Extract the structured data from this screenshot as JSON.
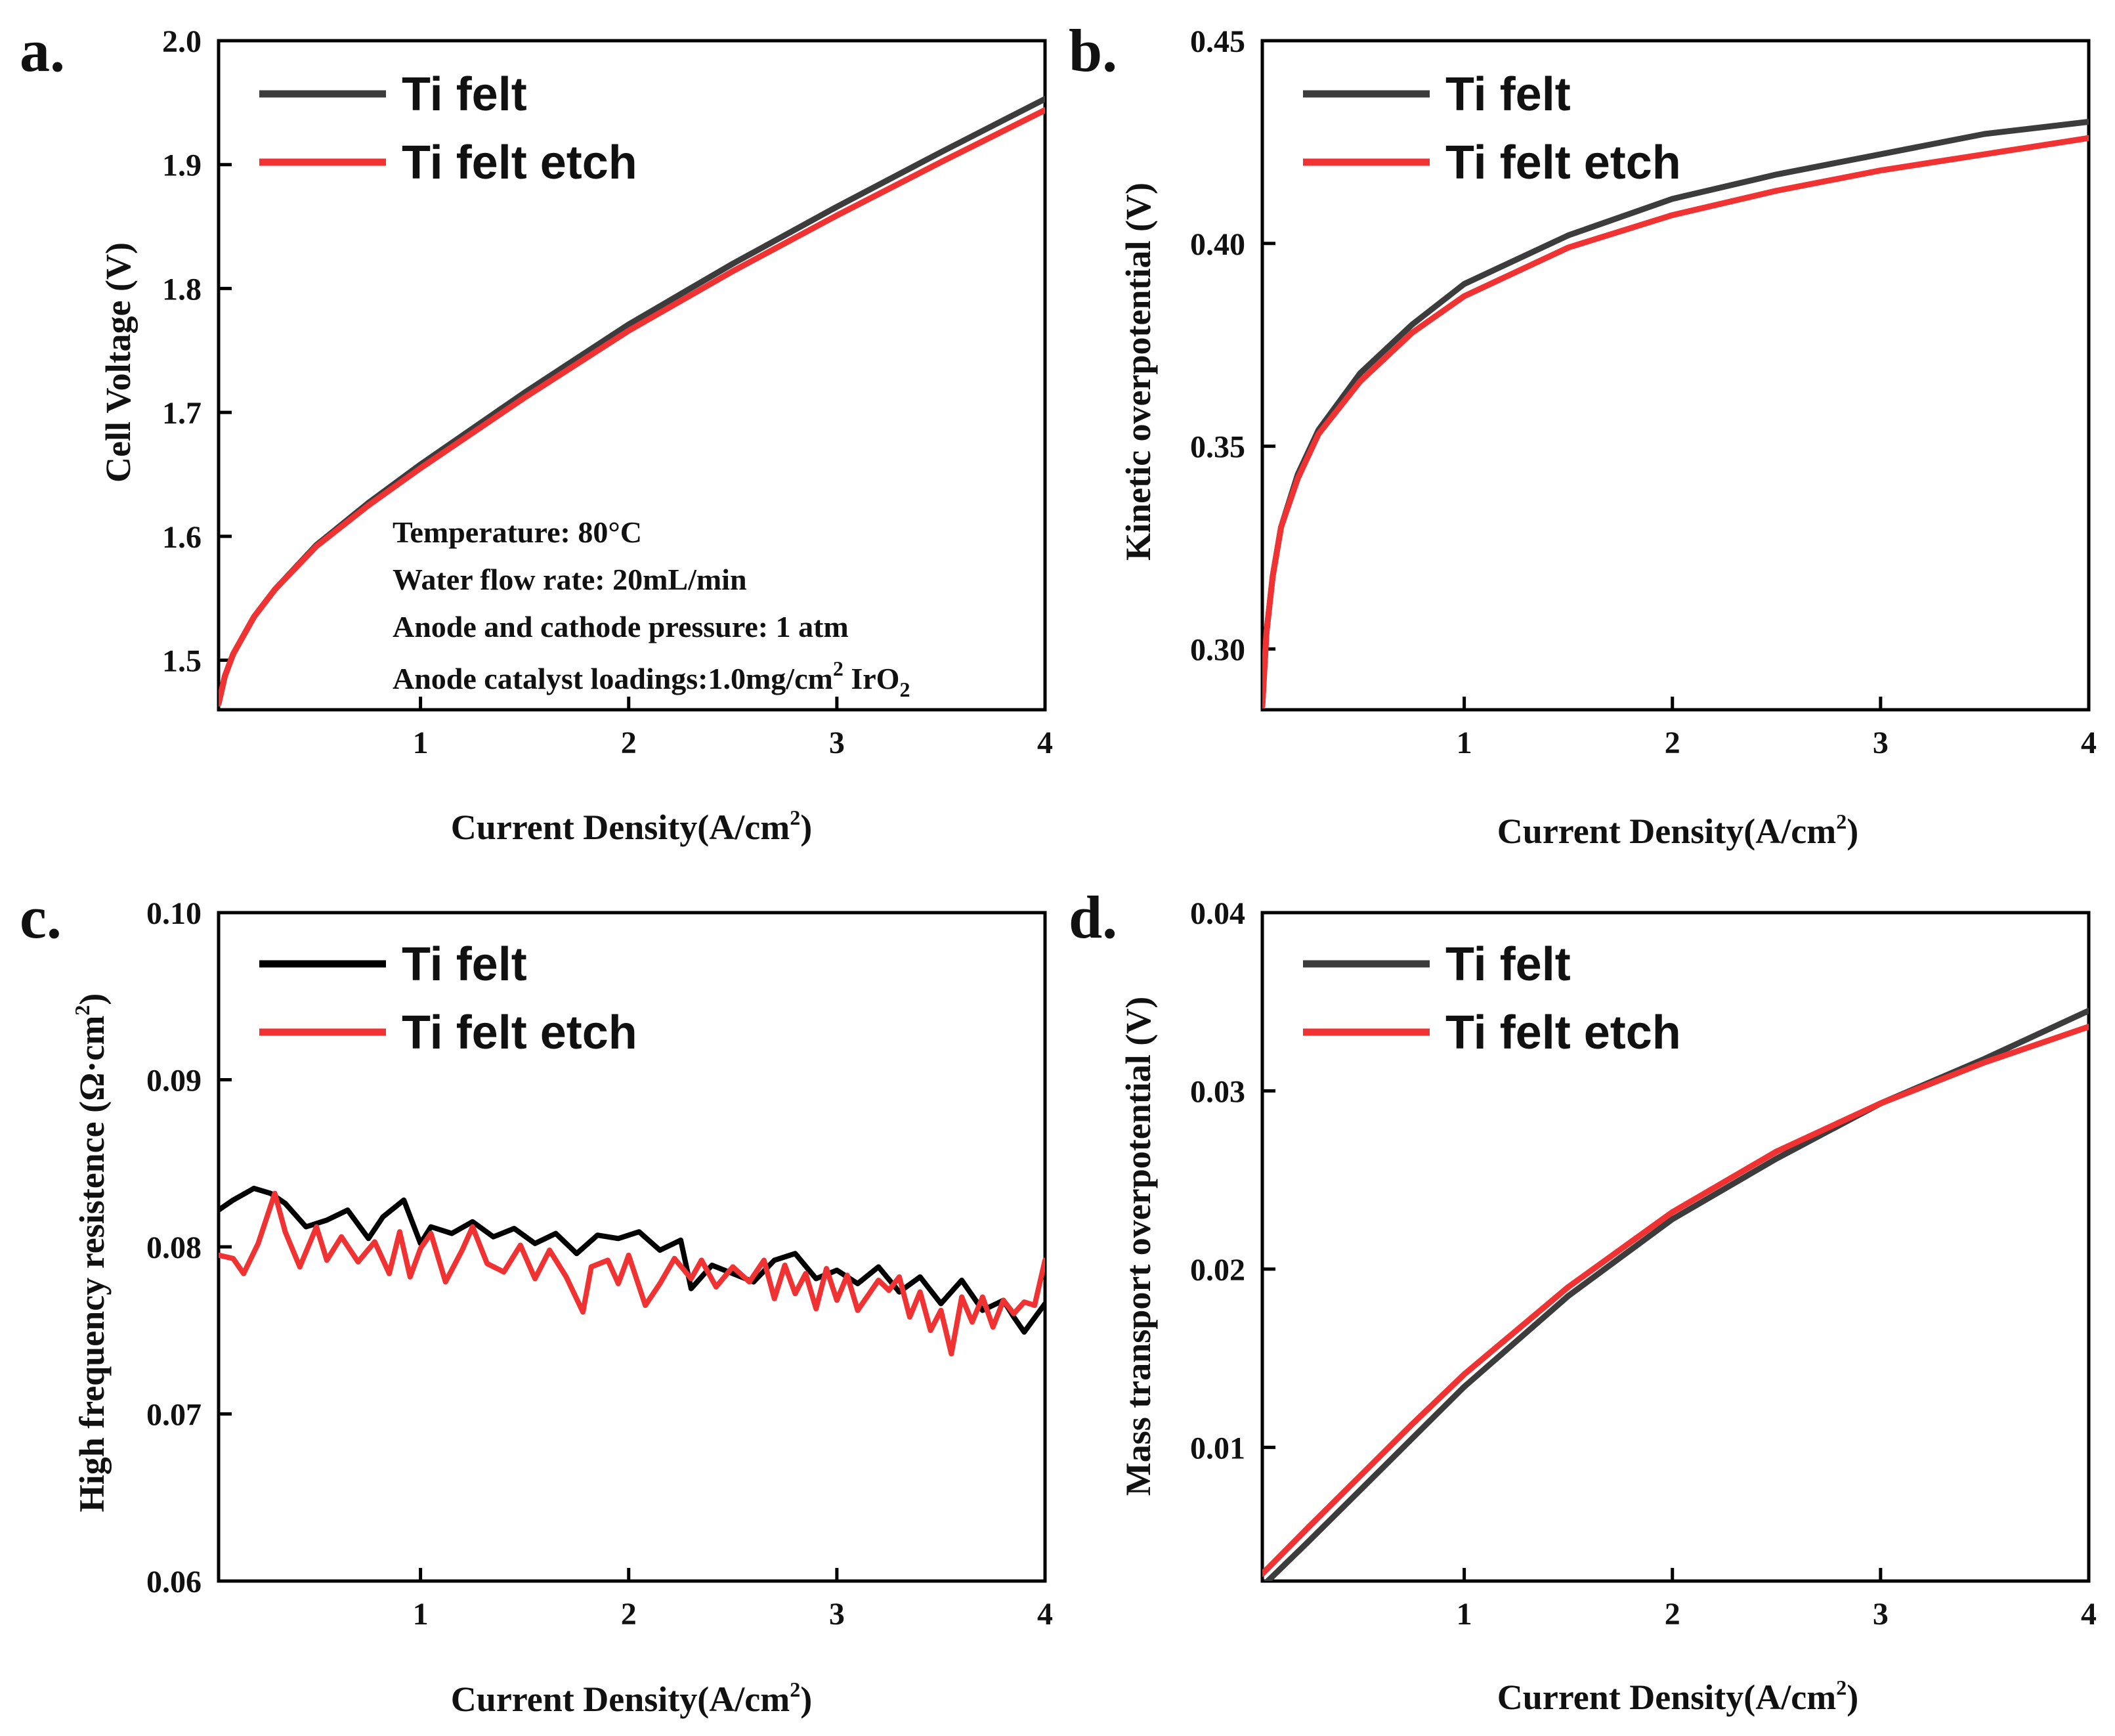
{
  "colors": {
    "black_series": "#3c3c3c",
    "black_series_c": "#000000",
    "red_series": "#f03232",
    "axis": "#000000"
  },
  "chart_data": [
    {
      "panel": "a.",
      "type": "line",
      "title": "",
      "xlabel": "Current Density(A/cm",
      "xlabel_sup": "2",
      "xlabel_end": ")",
      "ylabel": "Cell Voltage (V)",
      "xlim": [
        0.03,
        4
      ],
      "ylim": [
        1.46,
        2.0
      ],
      "xticks": [
        1,
        2,
        3,
        4
      ],
      "yticks": [
        1.5,
        1.6,
        1.7,
        1.8,
        1.9,
        2.0
      ],
      "ytick_decimals": 1,
      "legend_placement": "top-left",
      "annotations": [
        "Temperature: 80°C",
        "Water flow rate: 20mL/min",
        "Anode and cathode pressure: 1 atm",
        "Anode catalyst loadings:1.0mg/cm",
        "2",
        " IrO",
        "2"
      ],
      "series": [
        {
          "name": "Ti felt",
          "color": "#3c3c3c",
          "x": [
            0.03,
            0.06,
            0.1,
            0.2,
            0.3,
            0.5,
            0.75,
            1.0,
            1.5,
            2.0,
            2.5,
            3.0,
            3.5,
            4.0
          ],
          "y": [
            1.465,
            1.487,
            1.505,
            1.535,
            1.557,
            1.593,
            1.627,
            1.658,
            1.716,
            1.771,
            1.82,
            1.866,
            1.91,
            1.953
          ]
        },
        {
          "name": "Ti felt etch",
          "color": "#f03232",
          "x": [
            0.03,
            0.06,
            0.1,
            0.2,
            0.3,
            0.5,
            0.75,
            1.0,
            1.5,
            2.0,
            2.5,
            3.0,
            3.5,
            4.0
          ],
          "y": [
            1.465,
            1.487,
            1.505,
            1.535,
            1.557,
            1.592,
            1.625,
            1.655,
            1.712,
            1.766,
            1.814,
            1.859,
            1.902,
            1.944
          ]
        }
      ]
    },
    {
      "panel": "b.",
      "type": "line",
      "title": "",
      "xlabel": "Current Density(A/cm",
      "xlabel_sup": "2",
      "xlabel_end": ")",
      "ylabel": "Kinetic overpotential (V)",
      "xlim": [
        0.03,
        4
      ],
      "ylim": [
        0.285,
        0.45
      ],
      "xticks": [
        1,
        2,
        3,
        4
      ],
      "yticks": [
        0.3,
        0.35,
        0.4,
        0.45
      ],
      "ytick_decimals": 2,
      "legend_placement": "top-left",
      "series": [
        {
          "name": "Ti felt",
          "color": "#3c3c3c",
          "x": [
            0.03,
            0.05,
            0.08,
            0.12,
            0.2,
            0.3,
            0.5,
            0.75,
            1.0,
            1.5,
            2.0,
            2.5,
            3.0,
            3.5,
            4.0
          ],
          "y": [
            0.286,
            0.304,
            0.318,
            0.33,
            0.343,
            0.354,
            0.368,
            0.38,
            0.39,
            0.402,
            0.411,
            0.417,
            0.422,
            0.427,
            0.43
          ]
        },
        {
          "name": "Ti felt etch",
          "color": "#f03232",
          "x": [
            0.03,
            0.05,
            0.08,
            0.12,
            0.2,
            0.3,
            0.5,
            0.75,
            1.0,
            1.5,
            2.0,
            2.5,
            3.0,
            3.5,
            4.0
          ],
          "y": [
            0.286,
            0.304,
            0.318,
            0.33,
            0.342,
            0.353,
            0.366,
            0.378,
            0.387,
            0.399,
            0.407,
            0.413,
            0.418,
            0.422,
            0.426
          ]
        }
      ]
    },
    {
      "panel": "c.",
      "type": "line",
      "title": "",
      "xlabel": "Current Density(A/cm",
      "xlabel_sup": "2",
      "xlabel_end": ")",
      "ylabel": "High frequency resistence (Ω·cm",
      "ylabel_sup": "2",
      "ylabel_end": ")",
      "xlim": [
        0.03,
        4
      ],
      "ylim": [
        0.06,
        0.1
      ],
      "xticks": [
        1,
        2,
        3,
        4
      ],
      "yticks": [
        0.06,
        0.07,
        0.08,
        0.09,
        0.1
      ],
      "ytick_decimals": 2,
      "legend_placement": "top-left",
      "series": [
        {
          "name": "Ti felt",
          "color": "#000000",
          "x": [
            0.03,
            0.1,
            0.2,
            0.28,
            0.35,
            0.45,
            0.55,
            0.65,
            0.75,
            0.82,
            0.92,
            1.0,
            1.05,
            1.15,
            1.25,
            1.35,
            1.45,
            1.55,
            1.65,
            1.75,
            1.85,
            1.95,
            2.05,
            2.15,
            2.25,
            2.3,
            2.4,
            2.5,
            2.6,
            2.7,
            2.8,
            2.9,
            3.0,
            3.1,
            3.2,
            3.3,
            3.4,
            3.5,
            3.6,
            3.7,
            3.8,
            3.85,
            3.9,
            4.0
          ],
          "y": [
            0.0822,
            0.0828,
            0.0835,
            0.0832,
            0.0826,
            0.0812,
            0.0816,
            0.0822,
            0.0805,
            0.0818,
            0.0828,
            0.0802,
            0.0812,
            0.0808,
            0.0815,
            0.0806,
            0.0811,
            0.0802,
            0.0808,
            0.0796,
            0.0807,
            0.0805,
            0.0809,
            0.0798,
            0.0804,
            0.0775,
            0.0789,
            0.0784,
            0.0779,
            0.0792,
            0.0796,
            0.0781,
            0.0786,
            0.0778,
            0.0788,
            0.0773,
            0.0782,
            0.0766,
            0.078,
            0.0762,
            0.0768,
            0.0758,
            0.0749,
            0.0766
          ]
        },
        {
          "name": "Ti felt etch",
          "color": "#f03232",
          "x": [
            0.03,
            0.1,
            0.15,
            0.22,
            0.3,
            0.35,
            0.42,
            0.5,
            0.55,
            0.62,
            0.7,
            0.78,
            0.85,
            0.9,
            0.95,
            1.0,
            1.05,
            1.12,
            1.2,
            1.25,
            1.32,
            1.4,
            1.48,
            1.55,
            1.62,
            1.7,
            1.78,
            1.82,
            1.9,
            1.95,
            2.0,
            2.08,
            2.15,
            2.22,
            2.3,
            2.35,
            2.42,
            2.5,
            2.58,
            2.65,
            2.7,
            2.75,
            2.8,
            2.85,
            2.9,
            2.95,
            3.0,
            3.05,
            3.1,
            3.2,
            3.25,
            3.3,
            3.35,
            3.4,
            3.45,
            3.5,
            3.55,
            3.6,
            3.65,
            3.7,
            3.75,
            3.8,
            3.85,
            3.9,
            3.95,
            4.0
          ],
          "y": [
            0.0795,
            0.0793,
            0.0784,
            0.0802,
            0.0832,
            0.0809,
            0.0788,
            0.0812,
            0.0792,
            0.0806,
            0.0791,
            0.0803,
            0.0784,
            0.0809,
            0.0782,
            0.0799,
            0.0808,
            0.0779,
            0.0798,
            0.0812,
            0.079,
            0.0785,
            0.0801,
            0.0781,
            0.0798,
            0.0782,
            0.0761,
            0.0788,
            0.0792,
            0.0778,
            0.0795,
            0.0765,
            0.0778,
            0.0793,
            0.0781,
            0.0792,
            0.0776,
            0.0788,
            0.0779,
            0.0792,
            0.0769,
            0.0789,
            0.0772,
            0.0784,
            0.0763,
            0.0787,
            0.0768,
            0.0783,
            0.0762,
            0.078,
            0.0774,
            0.0782,
            0.0758,
            0.0773,
            0.075,
            0.0762,
            0.0736,
            0.077,
            0.0755,
            0.077,
            0.0752,
            0.0768,
            0.076,
            0.0767,
            0.0765,
            0.0792
          ]
        }
      ]
    },
    {
      "panel": "d.",
      "type": "line",
      "title": "",
      "xlabel": "Current Density(A/cm",
      "xlabel_sup": "2",
      "xlabel_end": ")",
      "ylabel": "Mass transport overpotential (V)",
      "xlim": [
        0.03,
        4
      ],
      "ylim": [
        0.0025,
        0.04
      ],
      "xticks": [
        1,
        2,
        3,
        4
      ],
      "yticks": [
        0.01,
        0.02,
        0.03,
        0.04
      ],
      "ytick_decimals": 2,
      "legend_placement": "top-left",
      "series": [
        {
          "name": "Ti felt",
          "color": "#3c3c3c",
          "x": [
            0.03,
            0.25,
            0.5,
            0.75,
            1.0,
            1.5,
            2.0,
            2.5,
            3.0,
            3.5,
            4.0
          ],
          "y": [
            0.0022,
            0.0047,
            0.0076,
            0.0105,
            0.0134,
            0.0185,
            0.0228,
            0.0262,
            0.0293,
            0.0318,
            0.0345
          ]
        },
        {
          "name": "Ti felt etch",
          "color": "#f03232",
          "x": [
            0.03,
            0.25,
            0.5,
            0.75,
            1.0,
            1.5,
            2.0,
            2.5,
            3.0,
            3.5,
            4.0
          ],
          "y": [
            0.0029,
            0.0055,
            0.0084,
            0.0113,
            0.0141,
            0.019,
            0.0232,
            0.0266,
            0.0293,
            0.0316,
            0.0336
          ]
        }
      ]
    }
  ]
}
